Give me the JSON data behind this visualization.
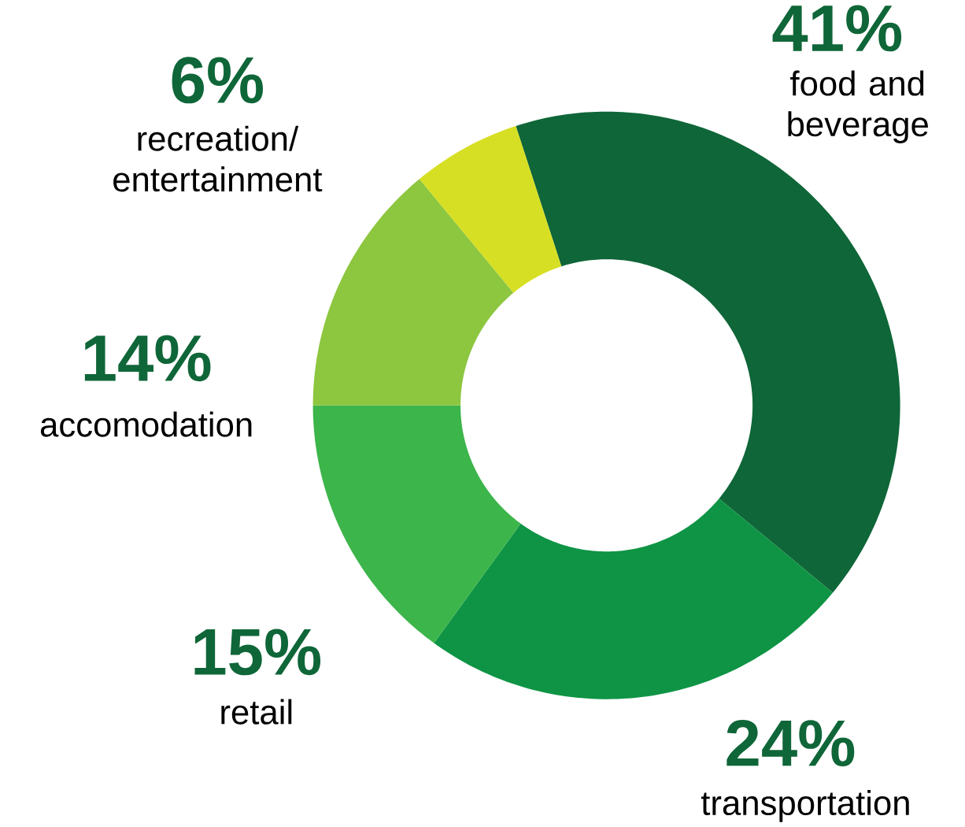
{
  "chart_data": {
    "type": "donut",
    "categories": [
      "food and beverage",
      "transportation",
      "retail",
      "accomodation",
      "recreation/ entertainment"
    ],
    "values": [
      41,
      24,
      15,
      14,
      6
    ],
    "value_labels": [
      "41%",
      "24%",
      "15%",
      "14%",
      "6%"
    ],
    "colors": [
      "#0f6638",
      "#0e9444",
      "#3cb54a",
      "#8dc63f",
      "#d6df23"
    ]
  }
}
